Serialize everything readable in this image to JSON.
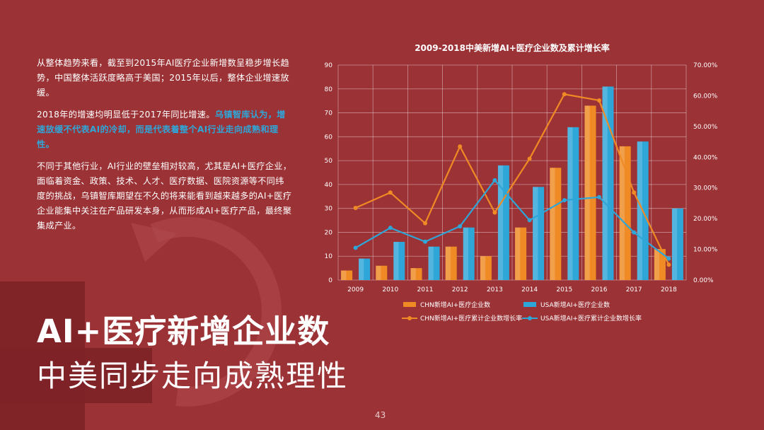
{
  "slide": {
    "paragraph1": "从整体趋势来看，截至到2015年AI医疗企业新增数呈稳步增长趋势，中国整体活跃度略高于美国；2015年以后，整体企业增速放缓。",
    "paragraph2_plain": "2018年的增速均明显低于2017年同比增速。",
    "paragraph2_highlight": "乌镇智库认为，增速放缓不代表AI的冷却，而是代表着整个AI行业走向成熟和理性。",
    "paragraph3": "不同于其他行业，AI行业的壁垒相对较高，尤其是AI+医疗企业，面临着资金、政策、技术、人才、医疗数据、医院资源等不同纬度的挑战，乌镇智库期望在不久的将来能看到越来越多的AI+医疗企业能集中关注在产品研发本身，从而形成AI+医疗产品，最终聚集成产业。",
    "title": "AI+医疗新增企业数",
    "subtitle": "中美同步走向成熟理性",
    "page_number": "43"
  },
  "colors": {
    "background": "#9b3236",
    "chn": "#f08a24",
    "usa": "#2fa6d8",
    "highlight": "#2fa6d8"
  },
  "chart_data": {
    "type": "bar",
    "title": "2009-2018中美新增AI+医疗企业数及累计增长率",
    "categories": [
      "2009",
      "2010",
      "2011",
      "2012",
      "2013",
      "2014",
      "2015",
      "2016",
      "2017",
      "2018"
    ],
    "ylim": [
      0,
      90
    ],
    "yticks": [
      "0",
      "10",
      "20",
      "30",
      "40",
      "50",
      "60",
      "70",
      "80",
      "90"
    ],
    "y2lim": [
      0,
      70
    ],
    "y2ticks": [
      "0.00%",
      "10.00%",
      "20.00%",
      "30.00%",
      "40.00%",
      "50.00%",
      "60.00%",
      "70.00%"
    ],
    "grid": true,
    "legend_position": "bottom",
    "series": [
      {
        "name": "CHN新增AI+医疗企业数",
        "kind": "bar",
        "axis": "left",
        "color": "#f08a24",
        "values": [
          4,
          6,
          5,
          14,
          10,
          22,
          47,
          73,
          56,
          13
        ]
      },
      {
        "name": "USA新增AI+医疗企业数",
        "kind": "bar",
        "axis": "left",
        "color": "#2fa6d8",
        "values": [
          9,
          16,
          14,
          22,
          48,
          39,
          64,
          81,
          58,
          30
        ]
      },
      {
        "name": "CHN新增AI+医疗累计企业数增长率",
        "kind": "line",
        "axis": "right",
        "color": "#f08a24",
        "values": [
          23.5,
          28.5,
          18.5,
          43.5,
          22,
          39.5,
          60.5,
          58.5,
          28.5,
          5
        ]
      },
      {
        "name": "USA新增AI+医疗累计企业数增长率",
        "kind": "line",
        "axis": "right",
        "color": "#2fa6d8",
        "values": [
          10.5,
          17,
          12.5,
          17.5,
          32.5,
          19.5,
          26,
          27,
          15.5,
          7
        ]
      }
    ]
  }
}
